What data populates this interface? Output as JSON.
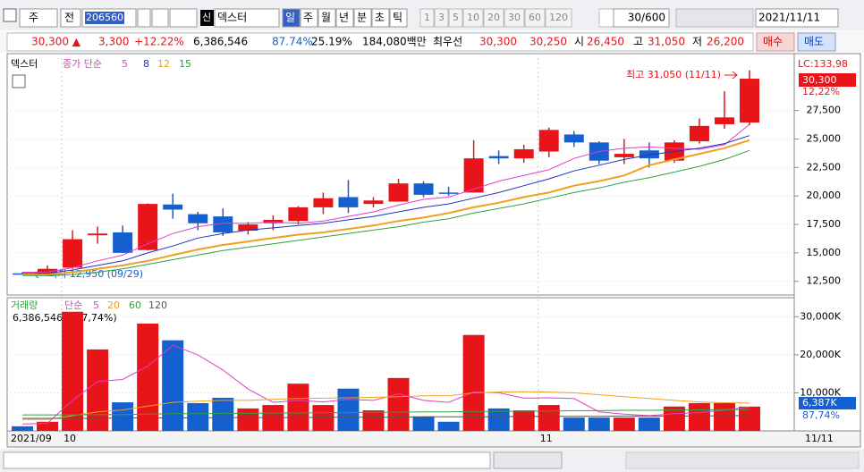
{
  "toolbar": {
    "type_label": "주",
    "mode": "전",
    "code": "206560",
    "badge": "신",
    "name": "덱스터",
    "periods": [
      "일",
      "주",
      "월",
      "년",
      "분",
      "초",
      "틱"
    ],
    "intervals": [
      "1",
      "3",
      "5",
      "10",
      "20",
      "30",
      "60",
      "120"
    ],
    "count": "30/600",
    "date": "2021/11/11"
  },
  "quote": {
    "price": "30,300 ▲",
    "change": "3,300",
    "rate": "+12.22%",
    "volume": "6,386,546",
    "volume_ratio": "87.74%",
    "turnover": "25.19%",
    "amount": "184,080백만",
    "best": "최우선",
    "ask": "30,300",
    "bid": "30,250",
    "open_label": "시",
    "open": "26,450",
    "high_label": "고",
    "high": "31,050",
    "low_label": "저",
    "low": "26,200",
    "buy": "매수",
    "sell": "매도"
  },
  "chart_data": [
    {
      "type": "candlestick",
      "name": "덱스터",
      "legend_label": "종가 단순",
      "up_color": "#e8141a",
      "down_color": "#1560d0",
      "open": [
        13200,
        13100,
        13700,
        16550,
        16800,
        15250,
        19250,
        18400,
        18200,
        16950,
        17600,
        17800,
        19000,
        19900,
        19300,
        19500,
        21100,
        20300,
        20300,
        23500,
        23300,
        23900,
        25400,
        24700,
        23400,
        24000,
        23100,
        24800,
        26300,
        26450
      ],
      "high": [
        13300,
        13900,
        16980,
        17300,
        17400,
        19350,
        20200,
        18600,
        18900,
        17700,
        18300,
        19100,
        20300,
        21400,
        19900,
        21500,
        21300,
        20800,
        24900,
        24000,
        24500,
        26000,
        25700,
        24800,
        25000,
        24700,
        24900,
        26800,
        29200,
        31050
      ],
      "low": [
        13100,
        12950,
        13600,
        15800,
        15000,
        15200,
        18000,
        17000,
        16500,
        16600,
        17000,
        17500,
        18400,
        18500,
        19000,
        19500,
        19900,
        20000,
        20300,
        22800,
        22900,
        23400,
        24300,
        22800,
        22800,
        22500,
        22900,
        24600,
        25900,
        26200
      ],
      "close": [
        13150,
        13600,
        16200,
        16700,
        15000,
        19300,
        18800,
        17600,
        16800,
        17500,
        17900,
        19000,
        19800,
        19000,
        19600,
        21100,
        20100,
        20200,
        23300,
        23300,
        24100,
        25800,
        24700,
        23100,
        23700,
        23300,
        24700,
        26150,
        26900,
        30300
      ],
      "series": [
        {
          "name": "5",
          "color": "#e040c0",
          "values": [
            13300,
            13300,
            13700,
            14300,
            14800,
            15800,
            16700,
            17300,
            17600,
            17600,
            17700,
            17600,
            17800,
            18200,
            18600,
            19200,
            19700,
            19900,
            20600,
            21300,
            21800,
            22300,
            23300,
            23900,
            24200,
            24300,
            24200,
            24100,
            24500,
            26300
          ]
        },
        {
          "name": "8",
          "color": "#2030c0",
          "values": [
            13200,
            13200,
            13500,
            13900,
            14300,
            15000,
            15600,
            16300,
            16700,
            17000,
            17200,
            17400,
            17600,
            17900,
            18200,
            18600,
            19000,
            19300,
            19800,
            20300,
            20900,
            21500,
            22200,
            22700,
            23200,
            23600,
            23900,
            24200,
            24600,
            25300
          ]
        },
        {
          "name": "12",
          "color": "#f0a020",
          "values": [
            13100,
            13100,
            13300,
            13600,
            13900,
            14300,
            14800,
            15300,
            15700,
            16000,
            16300,
            16600,
            16800,
            17100,
            17400,
            17800,
            18100,
            18500,
            19000,
            19400,
            19900,
            20300,
            20900,
            21300,
            21800,
            22700,
            23200,
            23700,
            24200,
            24900
          ]
        },
        {
          "name": "15",
          "color": "#30a040",
          "values": [
            13000,
            13000,
            13100,
            13300,
            13600,
            14000,
            14400,
            14800,
            15200,
            15500,
            15800,
            16100,
            16400,
            16700,
            17000,
            17300,
            17700,
            18000,
            18500,
            18900,
            19300,
            19800,
            20300,
            20700,
            21200,
            21600,
            22100,
            22600,
            23200,
            24000
          ]
        }
      ],
      "ylim": [
        11300,
        32500
      ],
      "yticks": [
        {
          "value": 12500,
          "label": "12,500"
        },
        {
          "value": 15000,
          "label": "15,000"
        },
        {
          "value": 17500,
          "label": "17,500"
        },
        {
          "value": 20000,
          "label": "20,000"
        },
        {
          "value": 22500,
          "label": "22,500"
        },
        {
          "value": 25000,
          "label": "25,000"
        },
        {
          "value": 27500,
          "label": "27,500"
        }
      ],
      "annotations": {
        "high": "최고 31,050 (11/11)",
        "low": "최저 12,950 (09/29)"
      },
      "right_labels": {
        "lc": "LC:133,98",
        "price": "30,300",
        "rate": "12,22%"
      }
    },
    {
      "type": "bar",
      "name": "거래량",
      "legend_label": "단순",
      "values": [
        1200,
        2400,
        31300,
        21400,
        7500,
        28200,
        23800,
        7300,
        8700,
        5900,
        6800,
        12400,
        6800,
        11100,
        5400,
        13900,
        3800,
        2400,
        25200,
        5900,
        5400,
        6800,
        3500,
        3500,
        3500,
        3500,
        6400,
        7300,
        7300,
        6386
      ],
      "series": [
        {
          "name": "5",
          "color": "#e040c0",
          "values": [
            1800,
            2000,
            8000,
            13000,
            13500,
            17000,
            22500,
            20000,
            16000,
            11000,
            7500,
            8000,
            7600,
            8300,
            8000,
            9700,
            8000,
            7500,
            10200,
            10000,
            8600,
            8700,
            8500,
            5000,
            4400,
            4000,
            4500,
            4800,
            5500,
            6300
          ]
        },
        {
          "name": "20",
          "color": "#f0a020",
          "values": [
            3000,
            3000,
            4000,
            5000,
            5500,
            6500,
            7500,
            7800,
            8000,
            8000,
            8300,
            8500,
            8600,
            8700,
            8800,
            9000,
            9200,
            9200,
            10000,
            10200,
            10300,
            10200,
            10000,
            9500,
            9000,
            8500,
            8000,
            7600,
            7400,
            7300
          ]
        },
        {
          "name": "60",
          "color": "#30a040",
          "values": [
            4200,
            4200,
            4200,
            4300,
            4300,
            4400,
            4500,
            4500,
            4600,
            4600,
            4700,
            4700,
            4800,
            4800,
            4900,
            4900,
            5000,
            5000,
            5100,
            5100,
            5200,
            5200,
            5300,
            5300,
            5400,
            5400,
            5500,
            5500,
            5600,
            5600
          ]
        },
        {
          "name": "120",
          "color": "#555555",
          "values": [
            3300,
            3300,
            3300,
            3300,
            3400,
            3400,
            3400,
            3400,
            3500,
            3500,
            3500,
            3500,
            3600,
            3600,
            3600,
            3600,
            3700,
            3700,
            3700,
            3700,
            3800,
            3800,
            3800,
            3800,
            3900,
            3900,
            3900,
            3900,
            4000,
            4000
          ]
        }
      ],
      "ylim": [
        0,
        35000
      ],
      "yticks": [
        {
          "value": 10000,
          "label": "10,000K"
        },
        {
          "value": 20000,
          "label": "20,000K"
        },
        {
          "value": 30000,
          "label": "30,000K"
        }
      ],
      "volume_label": "6,386,546주(87,74%)",
      "right_labels": {
        "value": "6,387K",
        "rate": "87,74%"
      },
      "categories": [
        "2021/09",
        null,
        "10",
        null,
        null,
        null,
        null,
        null,
        null,
        null,
        null,
        null,
        null,
        null,
        null,
        null,
        null,
        null,
        null,
        null,
        null,
        "11",
        null,
        null,
        null,
        null,
        null,
        null,
        null,
        null
      ],
      "current_label": "11/11"
    }
  ]
}
